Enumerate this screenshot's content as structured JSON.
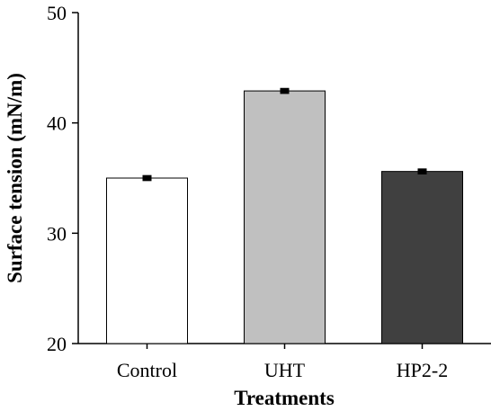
{
  "chart_data": {
    "type": "bar",
    "title": "",
    "xlabel": "Treatments",
    "ylabel": "Surface tension (mN/m)",
    "categories": [
      "Control",
      "UHT",
      "HP2-2"
    ],
    "values": [
      35.0,
      42.9,
      35.6
    ],
    "errors": [
      0.15,
      0.15,
      0.15
    ],
    "bar_colors": [
      "#ffffff",
      "#c0c0c0",
      "#404040"
    ],
    "ylim": [
      20,
      50
    ],
    "yticks": [
      20,
      30,
      40,
      50
    ],
    "grid": false,
    "legend": "none"
  }
}
